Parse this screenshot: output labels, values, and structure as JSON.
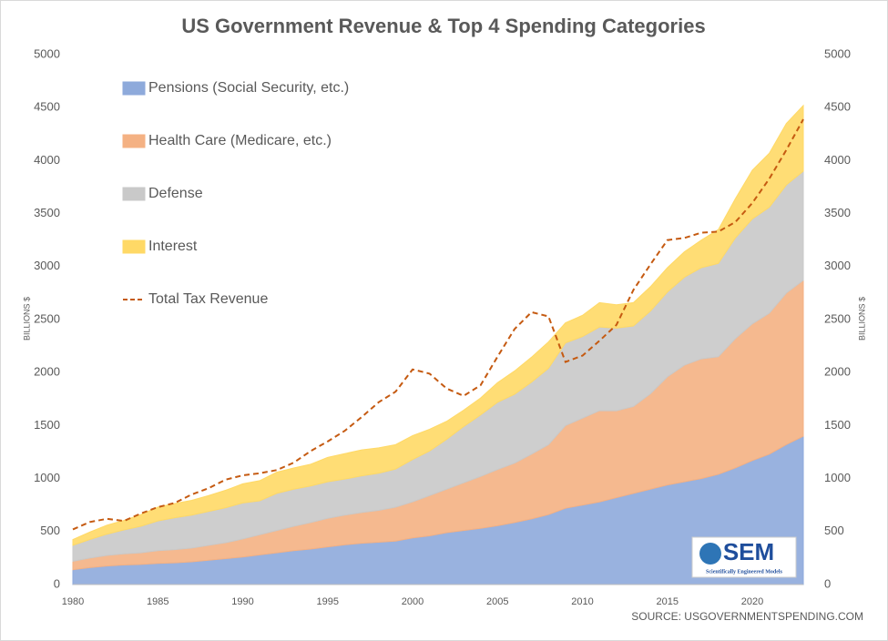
{
  "chart_data": {
    "type": "stacked-area",
    "title": "US Government Revenue & Top 4 Spending Categories",
    "ylabel": "BILLIONS $",
    "y2label": "BILLIONS $",
    "source": "SOURCE: USGOVERNMENTSPENDING.COM",
    "logo": {
      "text": "SEM",
      "subtitle": "Scientifically Engineered Models"
    },
    "x": [
      1980,
      1981,
      1982,
      1983,
      1984,
      1985,
      1986,
      1987,
      1988,
      1989,
      1990,
      1991,
      1992,
      1993,
      1994,
      1995,
      1996,
      1997,
      1998,
      1999,
      2000,
      2001,
      2002,
      2003,
      2004,
      2005,
      2006,
      2007,
      2008,
      2009,
      2010,
      2011,
      2012,
      2013,
      2014,
      2015,
      2016,
      2017,
      2018,
      2019,
      2020,
      2021,
      2022,
      2023
    ],
    "xlim": [
      1980,
      2023
    ],
    "xticks": [
      1980,
      1985,
      1990,
      1995,
      2000,
      2005,
      2010,
      2015,
      2020
    ],
    "ylim": [
      0,
      5000
    ],
    "yticks": [
      0,
      500,
      1000,
      1500,
      2000,
      2500,
      3000,
      3500,
      4000,
      4500,
      5000
    ],
    "y2lim": [
      0,
      5000
    ],
    "y2ticks": [
      0,
      500,
      1000,
      1500,
      2000,
      2500,
      3000,
      3500,
      4000,
      4500,
      5000
    ],
    "series": [
      {
        "name": "Pensions (Social Security, etc.)",
        "color": "#8eaadb",
        "values": [
          140,
          160,
          175,
          185,
          190,
          200,
          205,
          215,
          230,
          245,
          260,
          280,
          300,
          320,
          335,
          355,
          375,
          390,
          400,
          410,
          440,
          460,
          490,
          510,
          530,
          555,
          585,
          620,
          660,
          720,
          750,
          780,
          820,
          860,
          900,
          940,
          970,
          1000,
          1040,
          1100,
          1170,
          1230,
          1320,
          1400
        ]
      },
      {
        "name": "Health Care (Medicare, etc.)",
        "color": "#f4b183",
        "values": [
          80,
          90,
          100,
          105,
          110,
          120,
          125,
          130,
          140,
          150,
          170,
          190,
          210,
          230,
          250,
          270,
          280,
          290,
          300,
          320,
          340,
          380,
          410,
          450,
          490,
          530,
          560,
          610,
          660,
          780,
          820,
          860,
          820,
          820,
          900,
          1020,
          1100,
          1130,
          1110,
          1220,
          1290,
          1330,
          1430,
          1470
        ]
      },
      {
        "name": "Defense",
        "color": "#c9c9c9",
        "values": [
          150,
          175,
          200,
          225,
          250,
          280,
          300,
          310,
          320,
          330,
          340,
          320,
          350,
          350,
          345,
          345,
          340,
          345,
          350,
          360,
          400,
          420,
          470,
          530,
          580,
          635,
          650,
          680,
          720,
          780,
          770,
          790,
          780,
          760,
          780,
          800,
          830,
          860,
          880,
          950,
          990,
          1000,
          1020,
          1030
        ]
      },
      {
        "name": "Interest",
        "color": "#ffd966",
        "values": [
          55,
          70,
          85,
          90,
          110,
          130,
          135,
          140,
          150,
          165,
          180,
          190,
          200,
          200,
          205,
          230,
          240,
          245,
          240,
          230,
          225,
          205,
          170,
          155,
          160,
          185,
          220,
          235,
          250,
          190,
          200,
          230,
          220,
          220,
          230,
          230,
          240,
          260,
          320,
          370,
          460,
          510,
          580,
          620
        ]
      },
      {
        "name": "Total Tax Revenue",
        "type": "line",
        "color": "#c55a11",
        "values": [
          520,
          590,
          620,
          600,
          670,
          730,
          770,
          850,
          910,
          990,
          1030,
          1050,
          1080,
          1150,
          1260,
          1350,
          1450,
          1580,
          1720,
          1820,
          2030,
          1990,
          1850,
          1780,
          1880,
          2150,
          2410,
          2570,
          2530,
          2100,
          2160,
          2300,
          2450,
          2780,
          3020,
          3250,
          3270,
          3320,
          3330,
          3420,
          3600,
          3830,
          4100,
          4390
        ]
      }
    ]
  }
}
